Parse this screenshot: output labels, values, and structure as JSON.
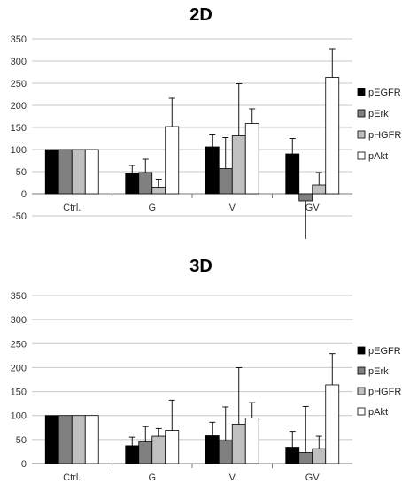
{
  "chart_data": [
    {
      "type": "bar",
      "title": "2D",
      "categories": [
        "Ctrl.",
        "G",
        "V",
        "GV"
      ],
      "ylim": [
        -50,
        350
      ],
      "yticks": [
        -50,
        0,
        50,
        100,
        150,
        200,
        250,
        300,
        350
      ],
      "grid": true,
      "legend_position": "right",
      "series": [
        {
          "name": "pEGFR",
          "color": "#000000",
          "values": [
            100,
            46,
            106,
            90
          ],
          "error": [
            0,
            18,
            27,
            35
          ]
        },
        {
          "name": "pErk",
          "color": "#808080",
          "values": [
            100,
            48,
            57,
            -16
          ],
          "error": [
            0,
            30,
            70,
            95
          ]
        },
        {
          "name": "pHGFR",
          "color": "#c0c0c0",
          "values": [
            100,
            15,
            131,
            20
          ],
          "error": [
            0,
            18,
            118,
            28
          ]
        },
        {
          "name": "pAkt",
          "color": "#ffffff",
          "values": [
            100,
            152,
            159,
            263
          ],
          "error": [
            0,
            64,
            33,
            65
          ]
        }
      ]
    },
    {
      "type": "bar",
      "title": "3D",
      "categories": [
        "Ctrl.",
        "G",
        "V",
        "GV"
      ],
      "ylim": [
        0,
        350
      ],
      "yticks": [
        0,
        50,
        100,
        150,
        200,
        250,
        300,
        350
      ],
      "grid": true,
      "legend_position": "right",
      "series": [
        {
          "name": "pEGFR",
          "color": "#000000",
          "values": [
            100,
            37,
            58,
            34
          ],
          "error": [
            0,
            18,
            28,
            33
          ]
        },
        {
          "name": "pErk",
          "color": "#808080",
          "values": [
            100,
            45,
            48,
            23
          ],
          "error": [
            0,
            32,
            70,
            96
          ]
        },
        {
          "name": "pHGFR",
          "color": "#c0c0c0",
          "values": [
            100,
            57,
            82,
            31
          ],
          "error": [
            0,
            16,
            118,
            26
          ]
        },
        {
          "name": "pAkt",
          "color": "#ffffff",
          "values": [
            100,
            69,
            95,
            164
          ],
          "error": [
            0,
            63,
            32,
            65
          ]
        }
      ]
    }
  ]
}
